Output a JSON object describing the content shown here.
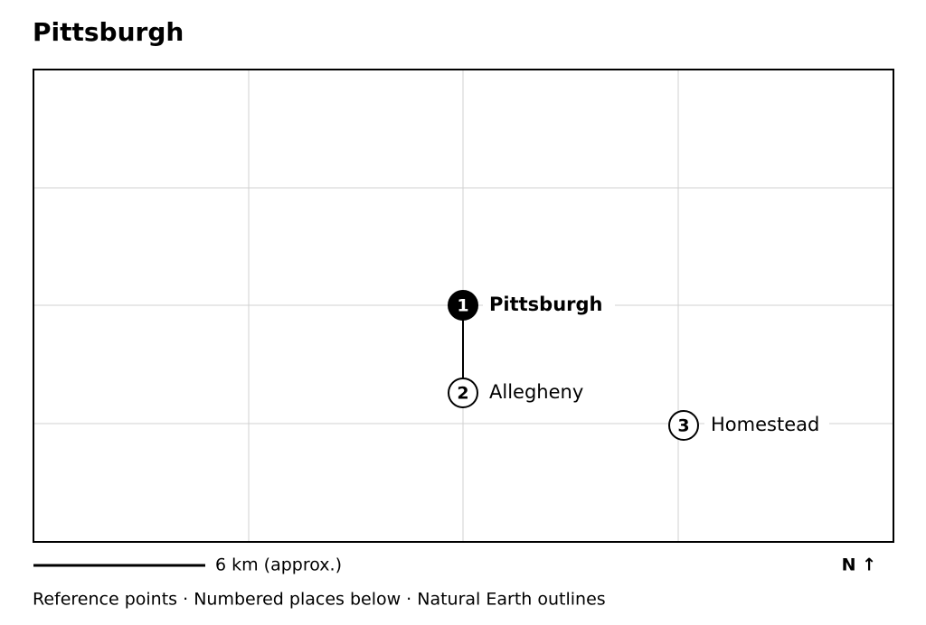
{
  "title": "Pittsburgh",
  "places": [
    {
      "number": 1,
      "name": "Pittsburgh"
    },
    {
      "number": 2,
      "name": "Allegheny"
    },
    {
      "number": 3,
      "name": "Homestead"
    }
  ],
  "scale_label": "6 km (approx.)",
  "north_label": "N ↑",
  "footer": "Reference points · Numbered places below · Natural Earth outlines"
}
